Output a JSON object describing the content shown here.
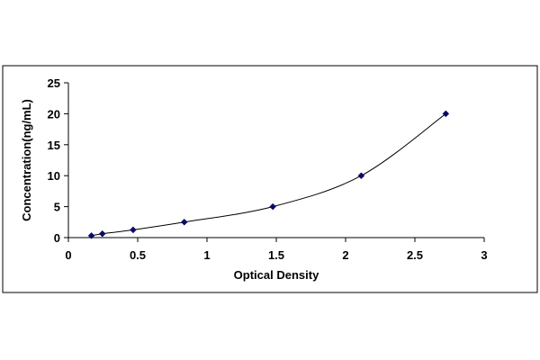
{
  "chart_data": {
    "type": "scatter",
    "title": "",
    "xlabel": "Optical Density",
    "ylabel": "Concentration(ng/mL)",
    "xlim": [
      0,
      3
    ],
    "ylim": [
      0,
      25
    ],
    "x_ticks": [
      0,
      0.5,
      1,
      1.5,
      2,
      2.5,
      3
    ],
    "x_tick_labels": [
      "0",
      "0.5",
      "1",
      "1.5",
      "2",
      "2.5",
      "3"
    ],
    "y_ticks": [
      0,
      5,
      10,
      15,
      20,
      25
    ],
    "y_tick_labels": [
      "0",
      "5",
      "10",
      "15",
      "20",
      "25"
    ],
    "grid": false,
    "legend": "none",
    "series": [
      {
        "x": [
          0.166,
          0.245,
          0.467,
          0.836,
          1.475,
          2.113,
          2.723
        ],
        "y": [
          0.313,
          0.625,
          1.25,
          2.5,
          5,
          10,
          20
        ],
        "marker": "diamond",
        "trendline": "smooth curve"
      }
    ],
    "colors": {
      "marker": "#0a0a66",
      "line": "#000000",
      "frame": "#000000"
    }
  }
}
